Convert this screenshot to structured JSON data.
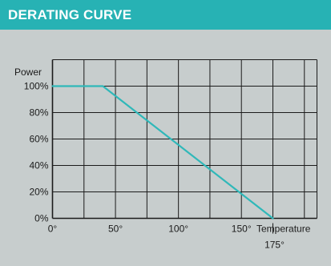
{
  "header": {
    "title": "DERATING CURVE"
  },
  "colors": {
    "header_bg": "#27b2b4",
    "panel_bg": "#c7cdcd",
    "curve": "#2fb8b9",
    "grid": "#1b1b1b"
  },
  "chart_data": {
    "type": "line",
    "title": "DERATING CURVE",
    "xlabel": "Temperature",
    "ylabel": "Power",
    "xlim": [
      0,
      210
    ],
    "ylim": [
      0,
      100
    ],
    "grid": true,
    "x_ticks": [
      {
        "value": 0,
        "label": "0°"
      },
      {
        "value": 50,
        "label": "50°"
      },
      {
        "value": 100,
        "label": "100°"
      },
      {
        "value": 150,
        "label": "150°"
      }
    ],
    "x_marker": {
      "value": 175,
      "label": "175°"
    },
    "y_ticks": [
      {
        "value": 0,
        "label": "0%"
      },
      {
        "value": 20,
        "label": "20%"
      },
      {
        "value": 40,
        "label": "40%"
      },
      {
        "value": 60,
        "label": "60%"
      },
      {
        "value": 80,
        "label": "80%"
      },
      {
        "value": 100,
        "label": "100%"
      }
    ],
    "x_gridlines": [
      0,
      25,
      50,
      75,
      100,
      125,
      150,
      175,
      200,
      210
    ],
    "y_gridlines": [
      0,
      20,
      40,
      60,
      80,
      100,
      120
    ],
    "series": [
      {
        "points": [
          {
            "x": 0,
            "y": 100
          },
          {
            "x": 40,
            "y": 100
          },
          {
            "x": 175,
            "y": 0
          }
        ]
      }
    ]
  }
}
